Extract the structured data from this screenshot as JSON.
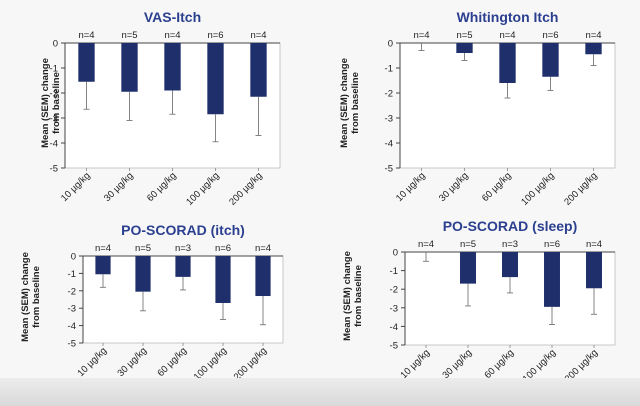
{
  "chart_data": [
    {
      "type": "bar",
      "title": "VAS-Itch",
      "ylabel": "Mean (SEM) change from baseline",
      "categories": [
        "10 µg/kg",
        "30 µg/kg",
        "60 µg/kg",
        "100 µg/kg",
        "200 µg/kg"
      ],
      "n_labels": [
        "n=4",
        "n=5",
        "n=4",
        "n=6",
        "n=4"
      ],
      "values": [
        -1.55,
        -1.95,
        -1.9,
        -2.85,
        -2.15
      ],
      "errors": [
        1.1,
        1.15,
        0.95,
        1.1,
        1.55
      ],
      "ylim": [
        -5,
        0
      ],
      "yticks": [
        "0",
        "-1",
        "-2",
        "-3",
        "-4",
        "-5"
      ],
      "bar_color": "#1f2f6b"
    },
    {
      "type": "bar",
      "title": "Whitington Itch",
      "ylabel": "Mean (SEM) change from baseline",
      "categories": [
        "10 µg/kg",
        "30 µg/kg",
        "60 µg/kg",
        "100 µg/kg",
        "200 µg/kg"
      ],
      "n_labels": [
        "n=4",
        "n=5",
        "n=4",
        "n=6",
        "n=4"
      ],
      "values": [
        0,
        -0.4,
        -1.6,
        -1.35,
        -0.45
      ],
      "errors": [
        0.3,
        0.3,
        0.6,
        0.55,
        0.45
      ],
      "ylim": [
        -5,
        0
      ],
      "yticks": [
        "0",
        "-1",
        "-2",
        "-3",
        "-4",
        "-5"
      ],
      "bar_color": "#1f2f6b"
    },
    {
      "type": "bar",
      "title": "PO-SCORAD (itch)",
      "ylabel": "Mean (SEM) change from baseline",
      "categories": [
        "10 µg/kg",
        "30 µg/kg",
        "60 µg/kg",
        "100 µg/kg",
        "200 µg/kg"
      ],
      "n_labels": [
        "n=4",
        "n=5",
        "n=3",
        "n=6",
        "n=4"
      ],
      "values": [
        -1.05,
        -2.05,
        -1.2,
        -2.7,
        -2.3
      ],
      "errors": [
        0.75,
        1.1,
        0.75,
        0.95,
        1.65
      ],
      "ylim": [
        -5,
        0
      ],
      "yticks": [
        "0",
        "-1",
        "-2",
        "-3",
        "-4",
        "-5"
      ],
      "bar_color": "#1f2f6b"
    },
    {
      "type": "bar",
      "title": "PO-SCORAD (sleep)",
      "ylabel": "Mean (SEM) change from baseline",
      "categories": [
        "10 µg/kg",
        "30 µg/kg",
        "60 µg/kg",
        "100 µg/kg",
        "200 µg/kg"
      ],
      "n_labels": [
        "n=4",
        "n=5",
        "n=3",
        "n=6",
        "n=4"
      ],
      "values": [
        0,
        -1.7,
        -1.35,
        -2.95,
        -1.95
      ],
      "errors": [
        0.5,
        1.2,
        0.85,
        0.95,
        1.4
      ],
      "ylim": [
        -5,
        0
      ],
      "yticks": [
        "0",
        "-1",
        "-2",
        "-3",
        "-4",
        "-5"
      ],
      "bar_color": "#1f2f6b"
    }
  ]
}
